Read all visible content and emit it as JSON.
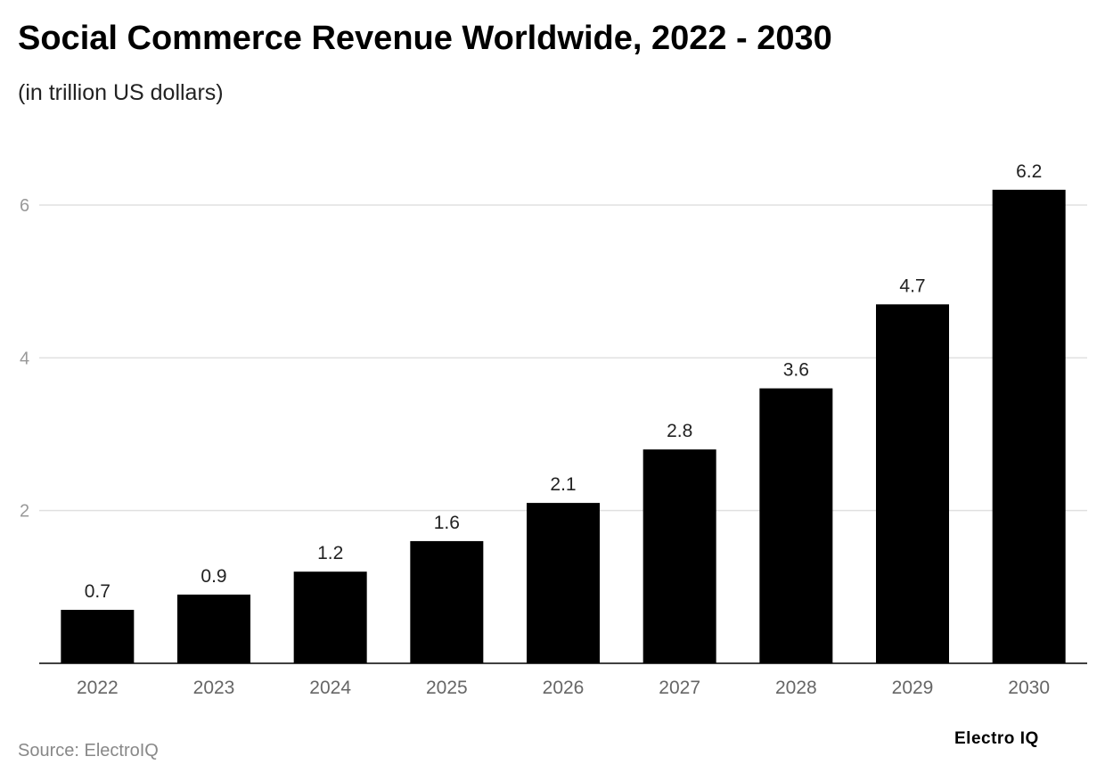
{
  "chart_data": {
    "type": "bar",
    "title": "Social Commerce Revenue Worldwide, 2022 - 2030",
    "subtitle": "(in trillion US dollars)",
    "categories": [
      "2022",
      "2023",
      "2024",
      "2025",
      "2026",
      "2027",
      "2028",
      "2029",
      "2030"
    ],
    "values": [
      0.7,
      0.9,
      1.2,
      1.6,
      2.1,
      2.8,
      3.6,
      4.7,
      6.2
    ],
    "xlabel": "",
    "ylabel": "",
    "ylim": [
      0,
      6.2
    ],
    "yticks": [
      2,
      4,
      6
    ],
    "grid": true,
    "bar_color": "#000000",
    "grid_color": "#e0e0e0"
  },
  "source": "Source: ElectroIQ",
  "logo": "Electro IQ"
}
